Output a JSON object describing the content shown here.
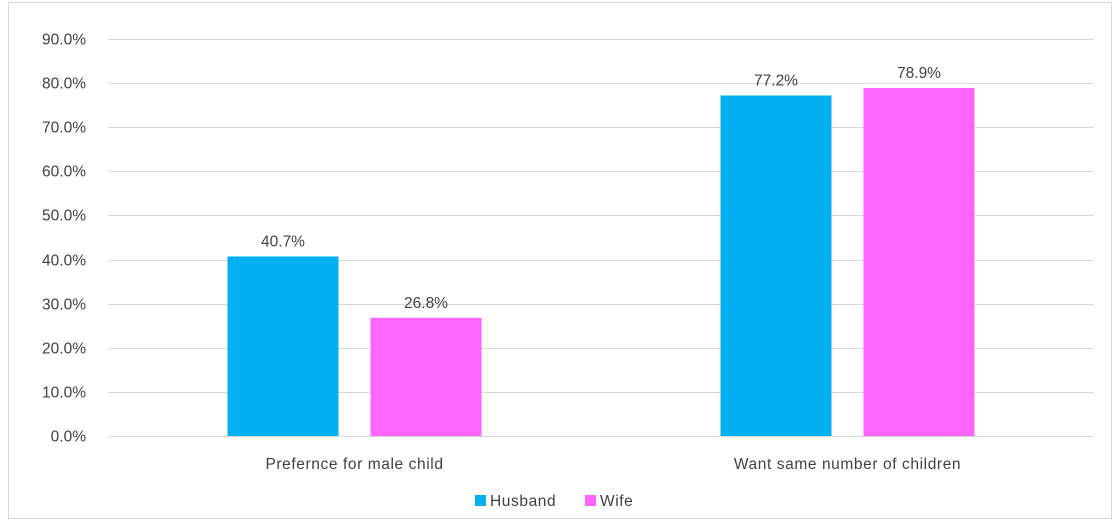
{
  "chart_data": {
    "type": "bar",
    "title": "",
    "xlabel": "",
    "ylabel": "",
    "categories": [
      "Prefernce for male child",
      "Want same number of children"
    ],
    "series": [
      {
        "name": "Husband",
        "values": [
          40.7,
          77.2
        ],
        "labels": [
          "40.7%",
          "77.2%"
        ],
        "color": "#00b0f0"
      },
      {
        "name": "Wife",
        "values": [
          26.8,
          78.9
        ],
        "labels": [
          "26.8%",
          "78.9%"
        ],
        "color": "#ff66ff"
      }
    ],
    "ylim": [
      0,
      90
    ],
    "yticks": [
      0,
      10,
      20,
      30,
      40,
      50,
      60,
      70,
      80,
      90
    ],
    "ytick_labels": [
      "0.0%",
      "10.0%",
      "20.0%",
      "30.0%",
      "40.0%",
      "50.0%",
      "60.0%",
      "70.0%",
      "80.0%",
      "90.0%"
    ],
    "grid": true,
    "legend_position": "bottom",
    "gridline_color": "#d9d9d9"
  }
}
